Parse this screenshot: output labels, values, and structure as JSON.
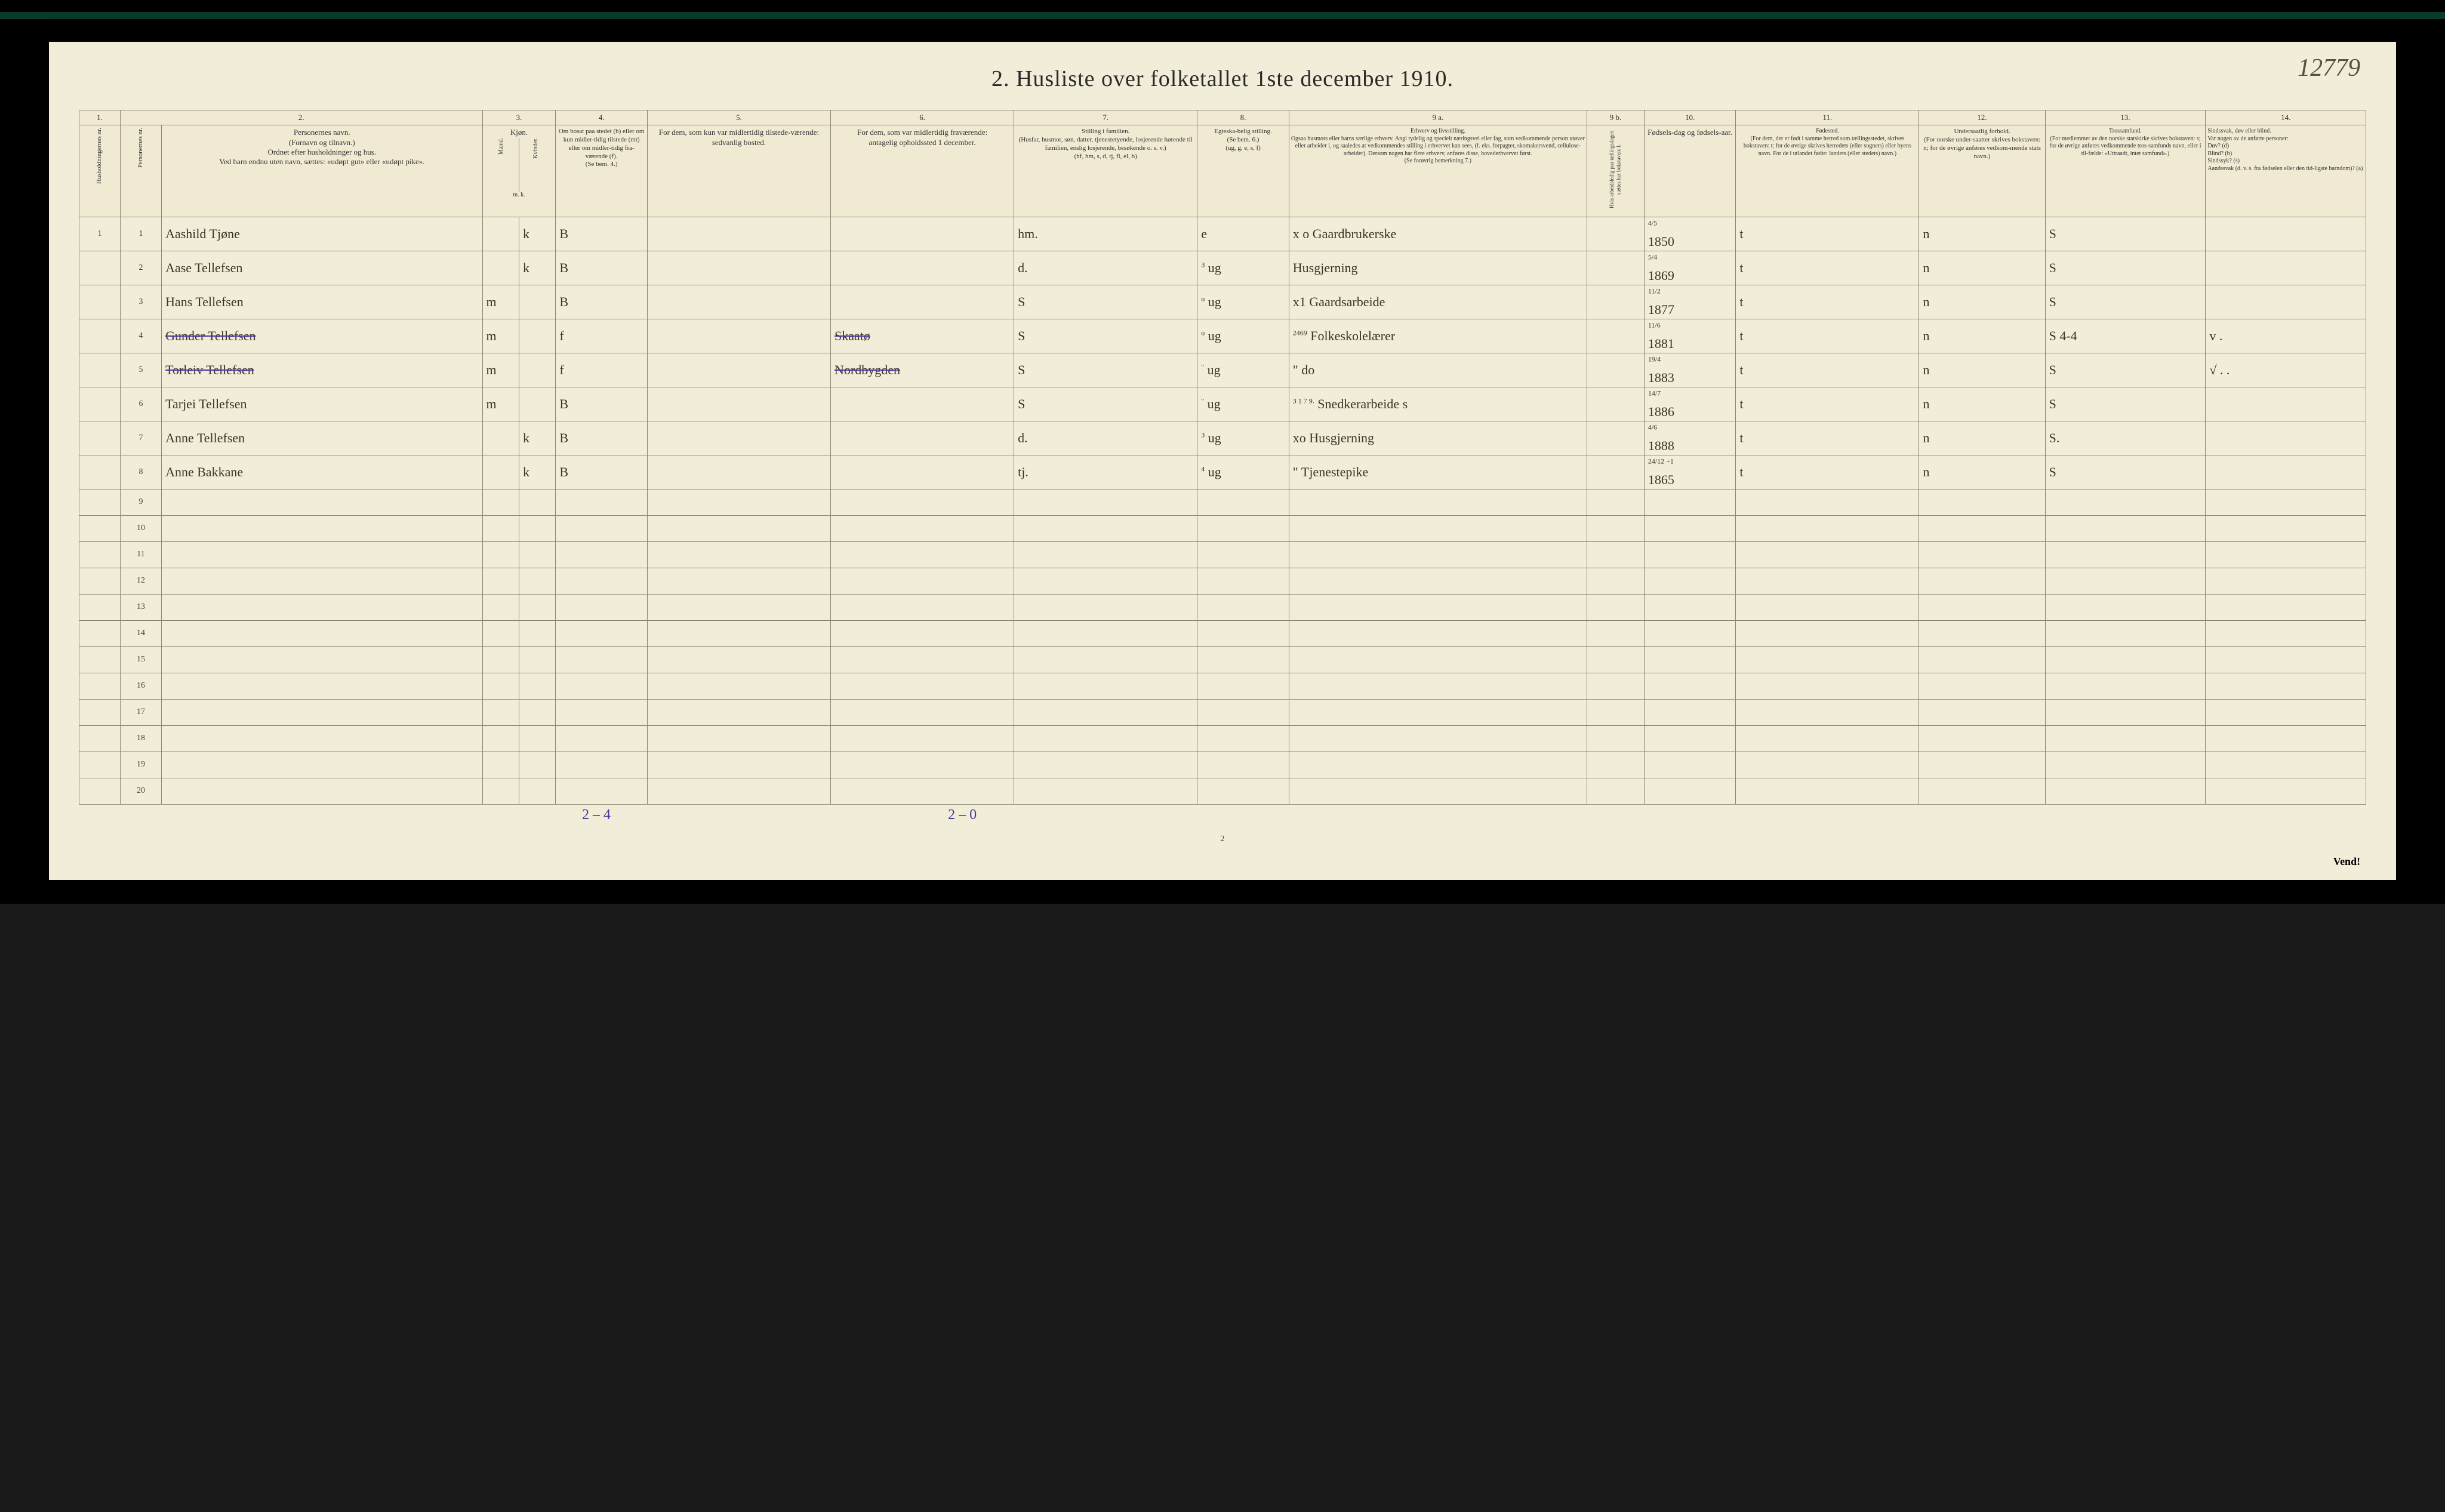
{
  "handwritten_id": "12779",
  "title": "2.   Husliste over folketallet 1ste december 1910.",
  "page_number": "2",
  "vend": "Vend!",
  "footer_totals": {
    "left": "2 – 4",
    "right": "2 – 0"
  },
  "col_numbers": [
    "1.",
    "2.",
    "3.",
    "4.",
    "5.",
    "6.",
    "7.",
    "8.",
    "9 a.",
    "9 b.",
    "10.",
    "11.",
    "12.",
    "13.",
    "14."
  ],
  "headers": {
    "c1": "Husholdningernes nr.",
    "c2_person_nr": "Personernes nr.",
    "c2": "Personernes navn.\n(Fornavn og tilnavn.)\nOrdnet efter husholdninger og hus.\nVed barn endnu uten navn, sættes: «udøpt gut» eller «udøpt pike».",
    "c3": "Kjøn.",
    "c3m": "Mænd.",
    "c3k": "Kvinder.",
    "c3note": "m.   k.",
    "c4": "Om bosat paa stedet (b) eller om kun midler-tidig tilstede (mt) eller om midler-tidig fra-værende (f).\n(Se bem. 4.)",
    "c5": "For dem, som kun var midlertidig tilstede-værende:\nsedvanlig bosted.",
    "c6": "For dem, som var midlertidig fraværende:\nantagelig opholdssted 1 december.",
    "c7": "Stilling i familien.\n(Husfar, husmor, søn, datter, tjenestetyende, losjerende hørende til familien, enslig losjerende, besøkende o. s. v.)\n(hf, hm, s, d, tj, fl, el, b)",
    "c8": "Egteska-belig stilling.\n(Se bem. 6.)\n(ug, g, e, s, f)",
    "c9a": "Erhverv og livsstilling.\nOgsaa husmors eller barns særlige erhverv. Angi tydelig og specielt næringsvei eller fag, som vedkommende person utøver eller arbeider i, og saaledes at vedkommendes stilling i erhvervet kan sees, (f. eks. forpagter, skomakersvend, cellulose-arbeider). Dersom nogen har flere erhverv, anføres disse, hovederhvervet først.\n(Se forøvrig bemerkning 7.)",
    "c9b": "Hvis arbeidsledig paa tællingsdagen sættes her bokstaven: l.",
    "c10": "Fødsels-dag og fødsels-aar.",
    "c11": "Fødested.\n(For dem, der er født i samme herred som tællingsstedet, skrives bokstaven: t; for de øvrige skrives herredets (eller sognets) eller byens navn. For de i utlandet fødte: landets (eller stedets) navn.)",
    "c12": "Undersaatlig forhold.\n(For norske under-saatter skrives bokstaven: n; for de øvrige anføres vedkom-mende stats navn.)",
    "c13": "Trossamfund.\n(For medlemmer av den norske statskirke skrives bokstaven: s; for de øvrige anføres vedkommende tros-samfunds navn, eller i til-fælde: «Uttraadt, intet samfund».)",
    "c14": "Sindssvak, døv eller blind.\nVar nogen av de anførte personer:\nDøv?        (d)\nBlind?      (b)\nSindssyk?   (s)\nAandssvak (d. v. s. fra fødselen eller den tid-ligste barndom)?  (a)"
  },
  "rows": [
    {
      "hh": "1",
      "pn": "1",
      "name": "Aashild Tjøne",
      "sex_m": "",
      "sex_k": "k",
      "c4": "B",
      "c5": "",
      "c6": "",
      "c7": "hm.",
      "c8": "e",
      "c9a": "x o  Gaardbrukerske",
      "c9b": "",
      "c10_top": "4/5",
      "c10": "1850",
      "c11": "t",
      "c12": "n",
      "c13": "S",
      "c14": "",
      "struck": false
    },
    {
      "hh": "",
      "pn": "2",
      "name": "Aase Tellefsen",
      "sex_m": "",
      "sex_k": "k",
      "c4": "B",
      "c5": "",
      "c6": "",
      "c7": "d.",
      "c8_top": "3",
      "c8": "ug",
      "c9a": "Husgjerning",
      "c9b": "",
      "c10_top": "5/4",
      "c10": "1869",
      "c11": "t",
      "c12": "n",
      "c13": "S",
      "c14": "",
      "struck": false
    },
    {
      "hh": "",
      "pn": "3",
      "name": "Hans Tellefsen",
      "sex_m": "m",
      "sex_k": "",
      "c4": "B",
      "c5": "",
      "c6": "",
      "c7": "S",
      "c8_top": "o",
      "c8": "ug",
      "c9a": "x1 Gaardsarbeide",
      "c9b": "",
      "c10_top": "11/2",
      "c10": "1877",
      "c11": "t",
      "c12": "n",
      "c13": "S",
      "c14": "",
      "struck": false
    },
    {
      "hh": "",
      "pn": "4",
      "name": "Gunder Tellefsen",
      "sex_m": "m",
      "sex_k": "",
      "c4": "f",
      "c5": "",
      "c6": "Skaatø",
      "c7": "S",
      "c8_top": "o",
      "c8": "ug",
      "c9a_top": "2469",
      "c9a": "Folkeskolelærer",
      "c9b": "",
      "c10_top": "11/6",
      "c10": "1881",
      "c11": "t",
      "c12": "n",
      "c13": "S  4-4",
      "c14": "v  .",
      "struck": true
    },
    {
      "hh": "",
      "pn": "5",
      "name": "Torleiv Tellefsen",
      "sex_m": "m",
      "sex_k": "",
      "c4": "f",
      "c5": "",
      "c6": "Nordbygden",
      "c7": "S",
      "c8_top": "\"",
      "c8": "ug",
      "c9a": "\"   do",
      "c9b": "",
      "c10_top": "19/4",
      "c10": "1883",
      "c11": "t",
      "c12": "n",
      "c13": "S",
      "c14": "√ . .",
      "struck": true
    },
    {
      "hh": "",
      "pn": "6",
      "name": "Tarjei Tellefsen",
      "sex_m": "m",
      "sex_k": "",
      "c4": "B",
      "c5": "",
      "c6": "",
      "c7": "S",
      "c8_top": "\"",
      "c8": "ug",
      "c9a_top": "3 1 7 9.",
      "c9a": "Snedkerarbeide   s",
      "c9b": "",
      "c10_top": "14/7",
      "c10": "1886",
      "c11": "t",
      "c12": "n",
      "c13": "S",
      "c14": "",
      "struck": false
    },
    {
      "hh": "",
      "pn": "7",
      "name": "Anne Tellefsen",
      "sex_m": "",
      "sex_k": "k",
      "c4": "B",
      "c5": "",
      "c6": "",
      "c7": "d.",
      "c8_top": "3",
      "c8": "ug",
      "c9a": "xo Husgjerning",
      "c9b": "",
      "c10_top": "4/6",
      "c10": "1888",
      "c11": "t",
      "c12": "n",
      "c13": "S.",
      "c14": "",
      "struck": false
    },
    {
      "hh": "",
      "pn": "8",
      "name": "Anne Bakkane",
      "sex_m": "",
      "sex_k": "k",
      "c4": "B",
      "c5": "",
      "c6": "",
      "c7": "tj.",
      "c8_top": "4",
      "c8": "ug",
      "c9a": "\" Tjenestepike",
      "c9b": "",
      "c10_top": "24/12 +1",
      "c10": "1865",
      "c11": "t",
      "c12": "n",
      "c13": "S",
      "c14": "",
      "struck": false
    }
  ],
  "empty_rows": [
    9,
    10,
    11,
    12,
    13,
    14,
    15,
    16,
    17,
    18,
    19,
    20
  ]
}
